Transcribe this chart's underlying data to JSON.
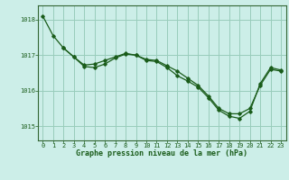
{
  "title": "Graphe pression niveau de la mer (hPa)",
  "background_color": "#cceee8",
  "plot_bg_color": "#cceee8",
  "grid_color": "#99ccbb",
  "line_color": "#1a5c1a",
  "marker_color": "#1a5c1a",
  "ylim": [
    1014.6,
    1018.4
  ],
  "yticks": [
    1015,
    1016,
    1017,
    1018
  ],
  "xlim": [
    -0.5,
    23.5
  ],
  "xticks": [
    0,
    1,
    2,
    3,
    4,
    5,
    6,
    7,
    8,
    9,
    10,
    11,
    12,
    13,
    14,
    15,
    16,
    17,
    18,
    19,
    20,
    21,
    22,
    23
  ],
  "line1_x": [
    0,
    1,
    2,
    3,
    4,
    5,
    6,
    7,
    8,
    9,
    10,
    11,
    12,
    13,
    14,
    15,
    16,
    17,
    18,
    19,
    20,
    21,
    22,
    23
  ],
  "line1_y": [
    1018.1,
    1017.55,
    1017.2,
    1016.95,
    1016.72,
    1016.75,
    1016.85,
    1016.95,
    1017.05,
    1017.0,
    1016.88,
    1016.85,
    1016.7,
    1016.55,
    1016.35,
    1016.15,
    1015.85,
    1015.5,
    1015.35,
    1015.35,
    1015.5,
    1016.15,
    1016.6,
    1016.55
  ],
  "line2_x": [
    2,
    3,
    4,
    5,
    6,
    7,
    8,
    9,
    10,
    11,
    12,
    13,
    14,
    15,
    16,
    17,
    18,
    19,
    20,
    21,
    22,
    23
  ],
  "line2_y": [
    1017.2,
    1016.95,
    1016.68,
    1016.65,
    1016.75,
    1016.92,
    1017.03,
    1017.0,
    1016.85,
    1016.82,
    1016.65,
    1016.42,
    1016.27,
    1016.1,
    1015.8,
    1015.45,
    1015.28,
    1015.22,
    1015.42,
    1016.2,
    1016.65,
    1016.58
  ]
}
